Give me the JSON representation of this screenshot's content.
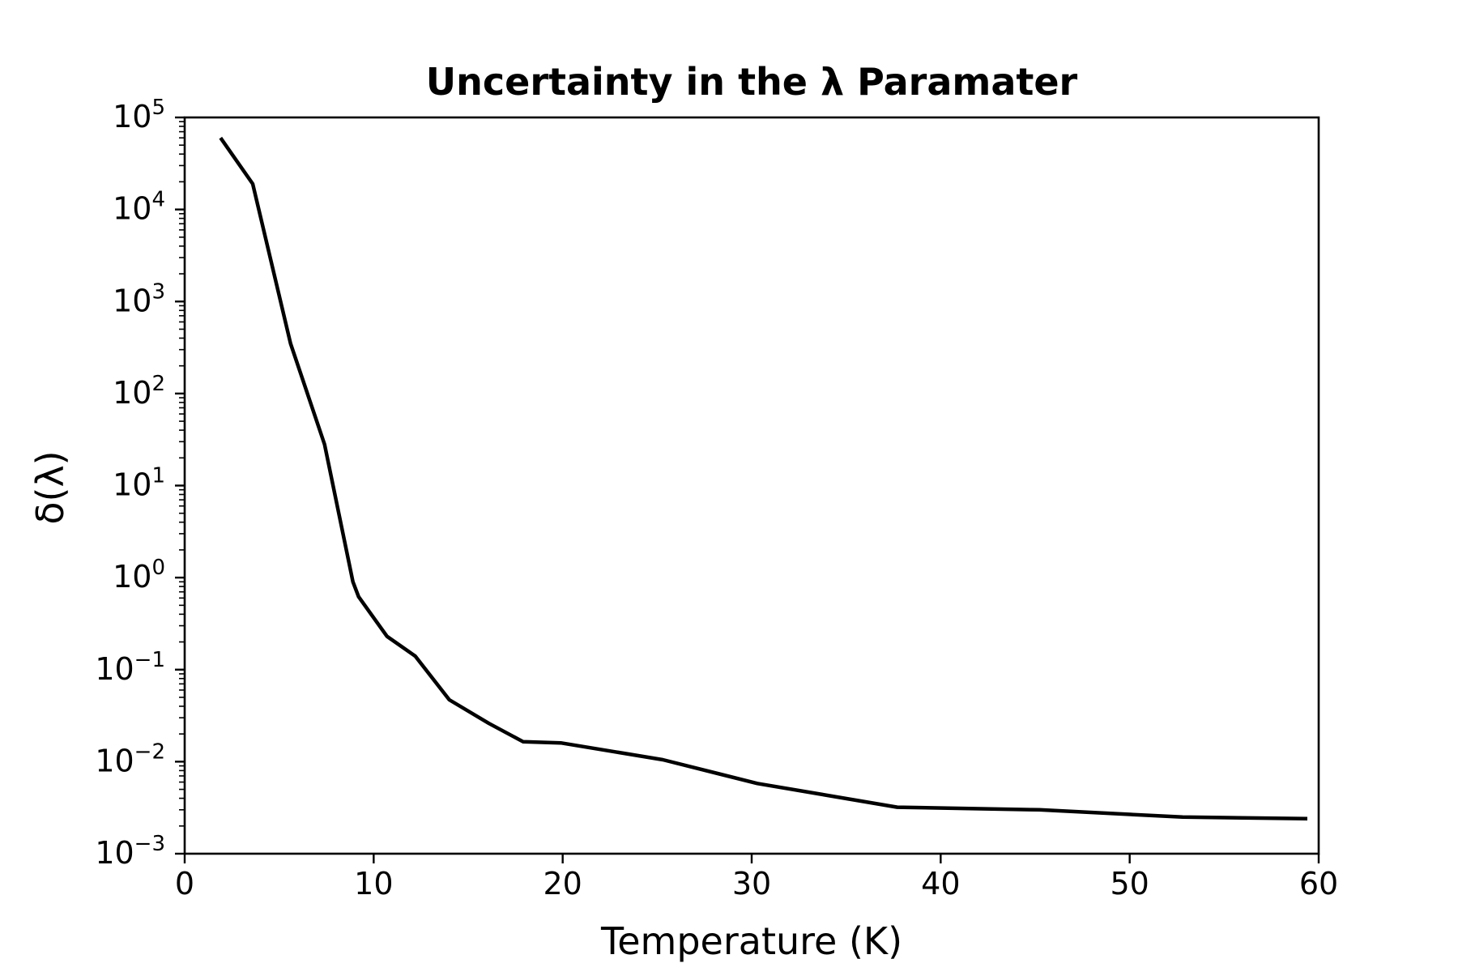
{
  "chart_data": {
    "type": "line",
    "title": "Uncertainty in the λ Paramater",
    "xlabel": "Temperature (K)",
    "ylabel": "δ(λ)",
    "xlim": [
      0,
      60
    ],
    "ylim": [
      0.001,
      100000
    ],
    "yscale": "log",
    "grid": false,
    "legend": "none",
    "line_color": "#000000",
    "x_ticks": [
      {
        "value": 0,
        "label": "0"
      },
      {
        "value": 10,
        "label": "10"
      },
      {
        "value": 20,
        "label": "20"
      },
      {
        "value": 30,
        "label": "30"
      },
      {
        "value": 40,
        "label": "40"
      },
      {
        "value": 50,
        "label": "50"
      },
      {
        "value": 60,
        "label": "60"
      }
    ],
    "y_ticks": [
      {
        "value": 0.001,
        "base": "10",
        "exp": "−3"
      },
      {
        "value": 0.01,
        "base": "10",
        "exp": "−2"
      },
      {
        "value": 0.1,
        "base": "10",
        "exp": "−1"
      },
      {
        "value": 1,
        "base": "10",
        "exp": "0"
      },
      {
        "value": 10,
        "base": "10",
        "exp": "1"
      },
      {
        "value": 100,
        "base": "10",
        "exp": "2"
      },
      {
        "value": 1000,
        "base": "10",
        "exp": "3"
      },
      {
        "value": 10000,
        "base": "10",
        "exp": "4"
      },
      {
        "value": 100000,
        "base": "10",
        "exp": "5"
      }
    ],
    "series": [
      {
        "x": [
          1.9,
          3.6,
          5.6,
          7.4,
          8.9,
          9.2,
          10.7,
          12.2,
          14.0,
          16.1,
          17.9,
          19.9,
          25.3,
          30.3,
          37.7,
          45.2,
          52.8,
          59.4
        ],
        "y": [
          60000,
          19000,
          350,
          28,
          0.9,
          0.62,
          0.23,
          0.14,
          0.047,
          0.026,
          0.0165,
          0.016,
          0.0105,
          0.0058,
          0.0032,
          0.003,
          0.0025,
          0.0024
        ]
      }
    ]
  }
}
